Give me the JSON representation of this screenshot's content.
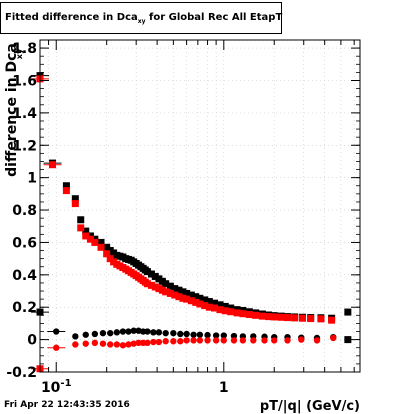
{
  "title": {
    "prefix": "Fitted difference in Dca",
    "subscript": "xy",
    "suffix": " for Global Rec All EtapT"
  },
  "footer": {
    "timestamp": "Fri Apr 22 12:43:35 2016"
  },
  "chart_data": {
    "type": "scatter",
    "title": "Fitted difference in Dcaxy for Global Rec All EtapT",
    "xlabel": "pT/|q| (GeV/c)",
    "ylabel": "difference in Dca",
    "x_scale": "log",
    "xlim": [
      0.08,
      6.5
    ],
    "ylim": [
      -0.2,
      1.85
    ],
    "grid": true,
    "x_major_ticks": [
      {
        "value": 0.1,
        "label": "10",
        "exp": "-1"
      },
      {
        "value": 1,
        "label": "1",
        "exp": ""
      }
    ],
    "y_ticks": [
      {
        "value": -0.2,
        "label": "-0.2"
      },
      {
        "value": 0,
        "label": "0"
      },
      {
        "value": 0.2,
        "label": "0.2"
      },
      {
        "value": 0.4,
        "label": "0.4"
      },
      {
        "value": 0.6,
        "label": "0.6"
      },
      {
        "value": 0.8,
        "label": "0.8"
      },
      {
        "value": 1,
        "label": "1"
      },
      {
        "value": 1.2,
        "label": "1.2"
      },
      {
        "value": 1.4,
        "label": "1.4"
      },
      {
        "value": 1.6,
        "label": "1.6"
      },
      {
        "value": 1.8,
        "label": "1.8"
      }
    ],
    "series": [
      {
        "color": "#000000",
        "points": [
          [
            0.08,
            1.63
          ],
          [
            0.095,
            1.09
          ],
          [
            0.115,
            0.95
          ],
          [
            0.13,
            0.87
          ],
          [
            0.14,
            0.74
          ],
          [
            0.15,
            0.67
          ],
          [
            0.16,
            0.64
          ],
          [
            0.17,
            0.62
          ],
          [
            0.185,
            0.6
          ],
          [
            0.2,
            0.57
          ],
          [
            0.21,
            0.55
          ],
          [
            0.22,
            0.535
          ],
          [
            0.23,
            0.52
          ],
          [
            0.24,
            0.515
          ],
          [
            0.25,
            0.51
          ],
          [
            0.26,
            0.5
          ],
          [
            0.27,
            0.495
          ],
          [
            0.28,
            0.49
          ],
          [
            0.29,
            0.48
          ],
          [
            0.3,
            0.47
          ],
          [
            0.31,
            0.46
          ],
          [
            0.32,
            0.45
          ],
          [
            0.33,
            0.44
          ],
          [
            0.34,
            0.43
          ],
          [
            0.35,
            0.42
          ],
          [
            0.37,
            0.405
          ],
          [
            0.39,
            0.39
          ],
          [
            0.41,
            0.375
          ],
          [
            0.43,
            0.36
          ],
          [
            0.45,
            0.345
          ],
          [
            0.48,
            0.33
          ],
          [
            0.51,
            0.315
          ],
          [
            0.54,
            0.305
          ],
          [
            0.57,
            0.295
          ],
          [
            0.6,
            0.285
          ],
          [
            0.64,
            0.275
          ],
          [
            0.68,
            0.265
          ],
          [
            0.72,
            0.255
          ],
          [
            0.77,
            0.245
          ],
          [
            0.82,
            0.235
          ],
          [
            0.88,
            0.225
          ],
          [
            0.95,
            0.215
          ],
          [
            1.02,
            0.205
          ],
          [
            1.1,
            0.195
          ],
          [
            1.2,
            0.185
          ],
          [
            1.3,
            0.18
          ],
          [
            1.42,
            0.172
          ],
          [
            1.55,
            0.165
          ],
          [
            1.7,
            0.158
          ],
          [
            1.85,
            0.152
          ],
          [
            2.0,
            0.148
          ],
          [
            2.2,
            0.145
          ],
          [
            2.4,
            0.142
          ],
          [
            2.65,
            0.14
          ],
          [
            2.95,
            0.138
          ],
          [
            3.3,
            0.136
          ],
          [
            3.8,
            0.135
          ],
          [
            4.4,
            0.132
          ],
          [
            5.5,
            0.17
          ]
        ]
      },
      {
        "color": "#ff0000",
        "points": [
          [
            0.08,
            1.61
          ],
          [
            0.095,
            1.08
          ],
          [
            0.115,
            0.92
          ],
          [
            0.13,
            0.84
          ],
          [
            0.14,
            0.69
          ],
          [
            0.15,
            0.64
          ],
          [
            0.16,
            0.62
          ],
          [
            0.17,
            0.6
          ],
          [
            0.185,
            0.57
          ],
          [
            0.2,
            0.53
          ],
          [
            0.21,
            0.5
          ],
          [
            0.22,
            0.48
          ],
          [
            0.23,
            0.465
          ],
          [
            0.24,
            0.455
          ],
          [
            0.25,
            0.445
          ],
          [
            0.26,
            0.435
          ],
          [
            0.27,
            0.425
          ],
          [
            0.28,
            0.415
          ],
          [
            0.29,
            0.405
          ],
          [
            0.3,
            0.395
          ],
          [
            0.31,
            0.385
          ],
          [
            0.32,
            0.375
          ],
          [
            0.33,
            0.365
          ],
          [
            0.34,
            0.355
          ],
          [
            0.35,
            0.345
          ],
          [
            0.37,
            0.335
          ],
          [
            0.39,
            0.325
          ],
          [
            0.41,
            0.315
          ],
          [
            0.43,
            0.305
          ],
          [
            0.45,
            0.295
          ],
          [
            0.48,
            0.285
          ],
          [
            0.51,
            0.275
          ],
          [
            0.54,
            0.265
          ],
          [
            0.57,
            0.255
          ],
          [
            0.6,
            0.25
          ],
          [
            0.64,
            0.24
          ],
          [
            0.68,
            0.23
          ],
          [
            0.72,
            0.22
          ],
          [
            0.77,
            0.21
          ],
          [
            0.82,
            0.2
          ],
          [
            0.88,
            0.195
          ],
          [
            0.95,
            0.185
          ],
          [
            1.02,
            0.178
          ],
          [
            1.1,
            0.172
          ],
          [
            1.2,
            0.165
          ],
          [
            1.3,
            0.16
          ],
          [
            1.42,
            0.155
          ],
          [
            1.55,
            0.15
          ],
          [
            1.7,
            0.145
          ],
          [
            1.85,
            0.142
          ],
          [
            2.0,
            0.14
          ],
          [
            2.2,
            0.138
          ],
          [
            2.4,
            0.136
          ],
          [
            2.65,
            0.134
          ],
          [
            2.95,
            0.132
          ],
          [
            3.3,
            0.13
          ],
          [
            3.8,
            0.128
          ],
          [
            4.4,
            0.12
          ]
        ]
      },
      {
        "color": "#000000",
        "points": [
          [
            0.08,
            0.17
          ],
          [
            0.1,
            0.05
          ],
          [
            0.13,
            0.02
          ],
          [
            0.15,
            0.03
          ],
          [
            0.17,
            0.035
          ],
          [
            0.19,
            0.04
          ],
          [
            0.21,
            0.04
          ],
          [
            0.23,
            0.045
          ],
          [
            0.25,
            0.05
          ],
          [
            0.27,
            0.05
          ],
          [
            0.29,
            0.055
          ],
          [
            0.31,
            0.055
          ],
          [
            0.33,
            0.05
          ],
          [
            0.35,
            0.05
          ],
          [
            0.38,
            0.045
          ],
          [
            0.41,
            0.045
          ],
          [
            0.45,
            0.04
          ],
          [
            0.5,
            0.04
          ],
          [
            0.55,
            0.035
          ],
          [
            0.6,
            0.035
          ],
          [
            0.66,
            0.03
          ],
          [
            0.72,
            0.03
          ],
          [
            0.8,
            0.028
          ],
          [
            0.9,
            0.025
          ],
          [
            1.0,
            0.025
          ],
          [
            1.15,
            0.022
          ],
          [
            1.3,
            0.02
          ],
          [
            1.5,
            0.02
          ],
          [
            1.75,
            0.018
          ],
          [
            2.0,
            0.015
          ],
          [
            2.4,
            0.015
          ],
          [
            2.9,
            0.012
          ],
          [
            3.6,
            0.01
          ],
          [
            4.5,
            0.015
          ],
          [
            5.5,
            0.0
          ]
        ]
      },
      {
        "color": "#ff0000",
        "points": [
          [
            0.08,
            -0.18
          ],
          [
            0.1,
            -0.05
          ],
          [
            0.13,
            -0.03
          ],
          [
            0.15,
            -0.025
          ],
          [
            0.17,
            -0.02
          ],
          [
            0.19,
            -0.025
          ],
          [
            0.21,
            -0.03
          ],
          [
            0.23,
            -0.03
          ],
          [
            0.25,
            -0.035
          ],
          [
            0.27,
            -0.03
          ],
          [
            0.29,
            -0.025
          ],
          [
            0.31,
            -0.02
          ],
          [
            0.33,
            -0.02
          ],
          [
            0.35,
            -0.02
          ],
          [
            0.38,
            -0.015
          ],
          [
            0.41,
            -0.015
          ],
          [
            0.45,
            -0.01
          ],
          [
            0.5,
            -0.01
          ],
          [
            0.55,
            -0.01
          ],
          [
            0.6,
            -0.005
          ],
          [
            0.66,
            -0.005
          ],
          [
            0.72,
            -0.005
          ],
          [
            0.8,
            -0.005
          ],
          [
            0.9,
            -0.005
          ],
          [
            1.0,
            -0.005
          ],
          [
            1.15,
            -0.005
          ],
          [
            1.3,
            -0.005
          ],
          [
            1.5,
            -0.005
          ],
          [
            1.75,
            -0.005
          ],
          [
            2.0,
            -0.005
          ],
          [
            2.4,
            -0.005
          ],
          [
            2.9,
            0.0
          ],
          [
            3.6,
            -0.005
          ],
          [
            4.5,
            0.01
          ]
        ]
      }
    ]
  }
}
